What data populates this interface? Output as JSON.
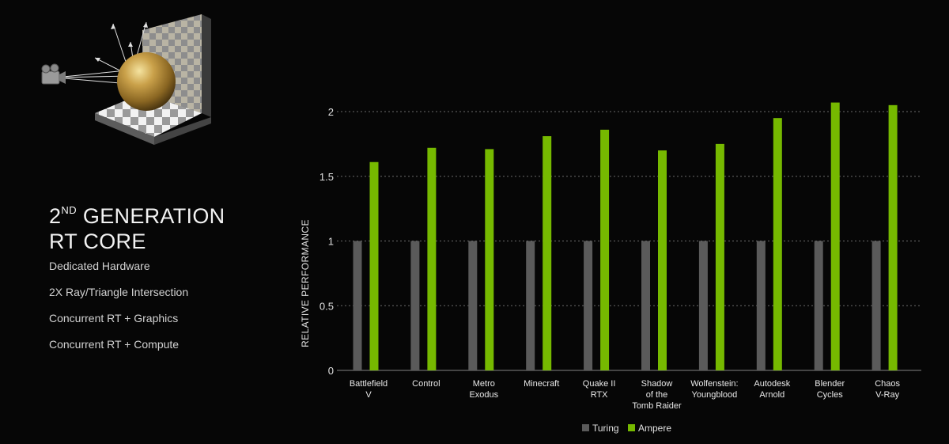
{
  "heading": {
    "line1_prefix": "2",
    "line1_sup": "ND",
    "line1_rest": " GENERATION",
    "line2": "RT CORE"
  },
  "features": [
    "Dedicated Hardware",
    "2X Ray/Triangle Intersection",
    "Concurrent RT + Graphics",
    "Concurrent RT + Compute"
  ],
  "colors": {
    "background": "#060606",
    "turing": "#5a5a5a",
    "ampere": "#76b900",
    "gridline": "#6a6a6a",
    "text": "#e8e8e8"
  },
  "chart_data": {
    "type": "bar",
    "title": "",
    "xlabel": "",
    "ylabel": "RELATIVE PERFORMANCE",
    "ylim": [
      0,
      2.1
    ],
    "yticks": [
      0,
      0.5,
      1,
      1.5,
      2
    ],
    "ytick_labels": [
      "0",
      "0.5",
      "1",
      "1.5",
      "2"
    ],
    "grid": true,
    "legend_position": "bottom-center",
    "categories": [
      [
        "Battlefield",
        "V"
      ],
      [
        "Control"
      ],
      [
        "Metro",
        "Exodus"
      ],
      [
        "Minecraft"
      ],
      [
        "Quake II",
        "RTX"
      ],
      [
        "Shadow",
        "of the",
        "Tomb Raider"
      ],
      [
        "Wolfenstein:",
        "Youngblood"
      ],
      [
        "Autodesk",
        "Arnold"
      ],
      [
        "Blender",
        "Cycles"
      ],
      [
        "Chaos",
        "V-Ray"
      ]
    ],
    "series": [
      {
        "name": "Turing",
        "color": "#5a5a5a",
        "values": [
          1,
          1,
          1,
          1,
          1,
          1,
          1,
          1,
          1,
          1
        ]
      },
      {
        "name": "Ampere",
        "color": "#76b900",
        "values": [
          1.61,
          1.72,
          1.71,
          1.81,
          1.86,
          1.7,
          1.75,
          1.95,
          2.07,
          2.05
        ]
      }
    ]
  }
}
